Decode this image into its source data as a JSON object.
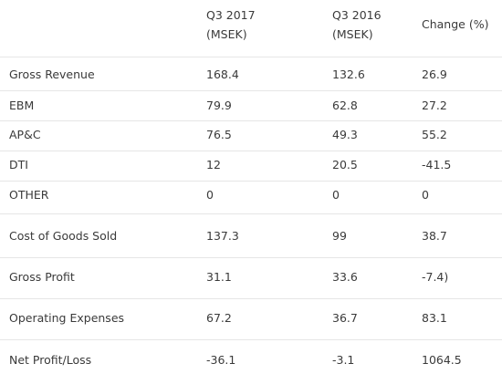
{
  "table": {
    "header": [
      [
        "Q3 2017",
        "(MSEK)"
      ],
      [
        "Q3 2016",
        "(MSEK)"
      ],
      [
        "Change (%)"
      ]
    ],
    "rows": [
      [
        "Gross Revenue",
        "168.4",
        "132.6",
        "26.9"
      ],
      [
        "EBM",
        "79.9",
        "62.8",
        "27.2"
      ],
      [
        "AP&C",
        "76.5",
        "49.3",
        "55.2"
      ],
      [
        "DTI",
        "12",
        "20.5",
        "-41.5"
      ],
      [
        "OTHER",
        "0",
        "0",
        "0"
      ],
      [
        "Cost of Goods Sold",
        "137.3",
        "99",
        "38.7"
      ],
      [
        "Gross Profit",
        "31.1",
        "33.6",
        "-7.4)"
      ],
      [
        "Operating Expenses",
        "67.2",
        "36.7",
        "83.1"
      ],
      [
        "Net Profit/Loss",
        "-36.1",
        "-3.1",
        "1064.5"
      ]
    ]
  }
}
